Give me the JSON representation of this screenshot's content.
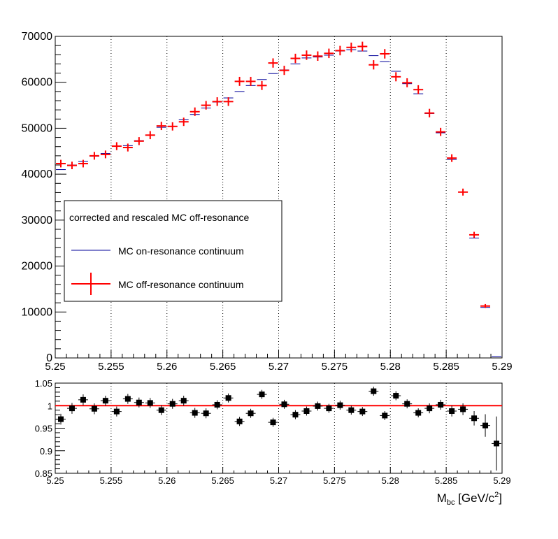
{
  "chart_data": [
    {
      "type": "line",
      "xlim": [
        5.25,
        5.29
      ],
      "ylim": [
        0,
        70000
      ],
      "xticks": [
        "5.25",
        "5.255",
        "5.26",
        "5.265",
        "5.27",
        "5.275",
        "5.28",
        "5.285",
        "5.29"
      ],
      "yticks": [
        "0",
        "10000",
        "20000",
        "30000",
        "40000",
        "50000",
        "60000",
        "70000"
      ],
      "grid": "vertical dotted",
      "legend": {
        "position": "middle-left",
        "header": "corrected and rescaled MC off-resonance",
        "entries": [
          "MC on-resonance continuum",
          "MC off-resonance continuum"
        ]
      },
      "x": [
        5.2505,
        5.2515,
        5.2525,
        5.2535,
        5.2545,
        5.2555,
        5.2565,
        5.2575,
        5.2585,
        5.2595,
        5.2605,
        5.2615,
        5.2625,
        5.2635,
        5.2645,
        5.2655,
        5.2665,
        5.2675,
        5.2685,
        5.2695,
        5.2705,
        5.2715,
        5.2725,
        5.2735,
        5.2745,
        5.2755,
        5.2765,
        5.2775,
        5.2785,
        5.2795,
        5.2805,
        5.2815,
        5.2825,
        5.2835,
        5.2845,
        5.2855,
        5.2865,
        5.2875,
        5.2885,
        5.2895
      ],
      "series": [
        {
          "name": "MC on-resonance continuum",
          "color": "#000099",
          "values": [
            41000,
            42000,
            42800,
            43900,
            44500,
            46100,
            46200,
            47300,
            48500,
            50200,
            50400,
            51900,
            53000,
            54400,
            55700,
            56600,
            58000,
            59300,
            60600,
            61900,
            62700,
            64000,
            65300,
            65500,
            65900,
            66800,
            67100,
            66800,
            65800,
            64500,
            62400,
            59700,
            57500,
            53200,
            49000,
            43200,
            36100,
            26100,
            11000,
            300
          ]
        },
        {
          "name": "MC off-resonance continuum",
          "color": "#ff0000",
          "values": [
            42300,
            41900,
            42300,
            44000,
            44300,
            46100,
            45800,
            47200,
            48500,
            50500,
            50400,
            51400,
            53600,
            55000,
            55800,
            55800,
            60200,
            60200,
            59300,
            64200,
            62600,
            65200,
            65900,
            65700,
            66300,
            66900,
            67600,
            67800,
            63800,
            66200,
            61200,
            59900,
            58400,
            53300,
            49200,
            43500,
            36100,
            26800,
            11300,
            0
          ]
        }
      ]
    },
    {
      "type": "scatter",
      "xlim": [
        5.25,
        5.29
      ],
      "ylim": [
        0.85,
        1.05
      ],
      "xticks": [
        "5.25",
        "5.255",
        "5.26",
        "5.265",
        "5.27",
        "5.275",
        "5.28",
        "5.285",
        "5.29"
      ],
      "yticks": [
        "0.85",
        "0.9",
        "0.95",
        "1",
        "1.05"
      ],
      "xlabel_main": "M",
      "xlabel_sub": "bc",
      "xlabel_rest": " [GeV/c",
      "xlabel_sup": "2",
      "xlabel_end": "]",
      "reference_line": 1,
      "reference_color": "#ff0000",
      "x": [
        5.2505,
        5.2515,
        5.2525,
        5.2535,
        5.2545,
        5.2555,
        5.2565,
        5.2575,
        5.2585,
        5.2595,
        5.2605,
        5.2615,
        5.2625,
        5.2635,
        5.2645,
        5.2655,
        5.2665,
        5.2675,
        5.2685,
        5.2695,
        5.2705,
        5.2715,
        5.2725,
        5.2735,
        5.2745,
        5.2755,
        5.2765,
        5.2775,
        5.2785,
        5.2795,
        5.2805,
        5.2815,
        5.2825,
        5.2835,
        5.2845,
        5.2855,
        5.2865,
        5.2875,
        5.2885,
        5.2895
      ],
      "values": [
        0.97,
        0.994,
        1.013,
        0.993,
        1.011,
        0.987,
        1.015,
        1.007,
        1.006,
        0.99,
        1.004,
        1.011,
        0.984,
        0.983,
        1.002,
        1.017,
        0.965,
        0.983,
        1.025,
        0.963,
        1.003,
        0.98,
        0.988,
        0.999,
        0.994,
        1.001,
        0.99,
        0.987,
        1.032,
        0.978,
        1.022,
        1.004,
        0.984,
        0.994,
        1.002,
        0.988,
        0.992,
        0.972,
        0.956,
        0.916
      ],
      "errors": [
        0.012,
        0.012,
        0.012,
        0.012,
        0.011,
        0.011,
        0.011,
        0.011,
        0.011,
        0.011,
        0.011,
        0.011,
        0.011,
        0.011,
        0.01,
        0.01,
        0.01,
        0.01,
        0.01,
        0.01,
        0.01,
        0.01,
        0.01,
        0.01,
        0.01,
        0.01,
        0.01,
        0.01,
        0.01,
        0.01,
        0.01,
        0.01,
        0.01,
        0.011,
        0.011,
        0.012,
        0.013,
        0.016,
        0.025,
        0.06
      ]
    }
  ]
}
